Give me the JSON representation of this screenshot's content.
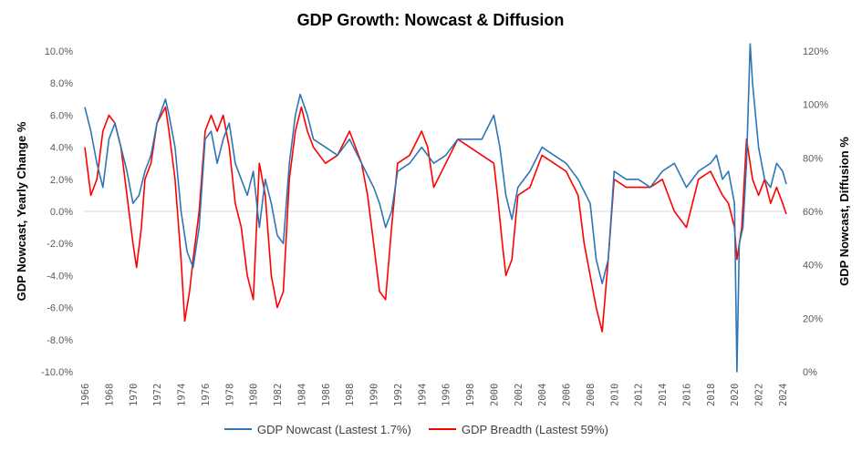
{
  "chart_data": {
    "type": "line",
    "title": "GDP Growth: Nowcast & Diffusion",
    "ylabel": "GDP Nowcast, Yearly Change %",
    "y2label": "GDP Nowcast, Diffusion %",
    "ylim": [
      -10,
      10
    ],
    "y2lim": [
      0,
      120
    ],
    "xlim": [
      1966,
      2024.5
    ],
    "yticks": [
      "-10.0%",
      "-8.0%",
      "-6.0%",
      "-4.0%",
      "-2.0%",
      "0.0%",
      "2.0%",
      "4.0%",
      "6.0%",
      "8.0%",
      "10.0%"
    ],
    "y2ticks": [
      "0%",
      "20%",
      "40%",
      "60%",
      "80%",
      "100%",
      "120%"
    ],
    "xticks": [
      "1966",
      "1968",
      "1970",
      "1972",
      "1974",
      "1976",
      "1978",
      "1980",
      "1982",
      "1984",
      "1986",
      "1988",
      "1990",
      "1992",
      "1994",
      "1996",
      "1998",
      "2000",
      "2002",
      "2004",
      "2006",
      "2008",
      "2010",
      "2012",
      "2014",
      "2016",
      "2018",
      "2020",
      "2022",
      "2024"
    ],
    "legend_position": "bottom",
    "series": [
      {
        "name": "GDP Nowcast (Lastest 1.7%)",
        "axis": "left",
        "color": "#2E75B6",
        "points": [
          [
            1966,
            6.5
          ],
          [
            1966.5,
            5
          ],
          [
            1967,
            3
          ],
          [
            1967.5,
            1.5
          ],
          [
            1968,
            4.5
          ],
          [
            1968.5,
            5.5
          ],
          [
            1969,
            4
          ],
          [
            1969.5,
            2.5
          ],
          [
            1970,
            0.5
          ],
          [
            1970.5,
            1
          ],
          [
            1971,
            2.5
          ],
          [
            1971.5,
            3.5
          ],
          [
            1972,
            5.5
          ],
          [
            1972.7,
            7
          ],
          [
            1973,
            6
          ],
          [
            1973.5,
            4
          ],
          [
            1974,
            0
          ],
          [
            1974.5,
            -2.5
          ],
          [
            1975,
            -3.5
          ],
          [
            1975.5,
            -1
          ],
          [
            1976,
            4.5
          ],
          [
            1976.5,
            5
          ],
          [
            1977,
            3
          ],
          [
            1977.5,
            4.5
          ],
          [
            1978,
            5.5
          ],
          [
            1978.5,
            3
          ],
          [
            1979,
            2
          ],
          [
            1979.5,
            1
          ],
          [
            1980,
            2.5
          ],
          [
            1980.5,
            -1
          ],
          [
            1981,
            2
          ],
          [
            1981.5,
            0.5
          ],
          [
            1982,
            -1.5
          ],
          [
            1982.5,
            -2
          ],
          [
            1983,
            3
          ],
          [
            1983.5,
            6
          ],
          [
            1983.9,
            7.3
          ],
          [
            1984.5,
            6
          ],
          [
            1985,
            4.5
          ],
          [
            1986,
            4
          ],
          [
            1987,
            3.5
          ],
          [
            1988,
            4.5
          ],
          [
            1989,
            3
          ],
          [
            1990,
            1.5
          ],
          [
            1990.5,
            0.5
          ],
          [
            1991,
            -1
          ],
          [
            1991.5,
            0
          ],
          [
            1992,
            2.5
          ],
          [
            1993,
            3
          ],
          [
            1994,
            4
          ],
          [
            1995,
            3
          ],
          [
            1996,
            3.5
          ],
          [
            1997,
            4.5
          ],
          [
            1998,
            4.5
          ],
          [
            1999,
            4.5
          ],
          [
            2000,
            6
          ],
          [
            2000.5,
            4
          ],
          [
            2001,
            1
          ],
          [
            2001.5,
            -0.5
          ],
          [
            2002,
            1.5
          ],
          [
            2003,
            2.5
          ],
          [
            2004,
            4
          ],
          [
            2005,
            3.5
          ],
          [
            2006,
            3
          ],
          [
            2007,
            2
          ],
          [
            2008,
            0.5
          ],
          [
            2008.5,
            -3
          ],
          [
            2009,
            -4.5
          ],
          [
            2009.5,
            -3
          ],
          [
            2010,
            2.5
          ],
          [
            2011,
            2
          ],
          [
            2012,
            2
          ],
          [
            2013,
            1.5
          ],
          [
            2014,
            2.5
          ],
          [
            2015,
            3
          ],
          [
            2016,
            1.5
          ],
          [
            2017,
            2.5
          ],
          [
            2018,
            3
          ],
          [
            2018.5,
            3.5
          ],
          [
            2019,
            2
          ],
          [
            2019.5,
            2.5
          ],
          [
            2020,
            0.5
          ],
          [
            2020.2,
            -10
          ],
          [
            2020.4,
            -2
          ],
          [
            2020.7,
            -1
          ],
          [
            2021,
            3
          ],
          [
            2021.3,
            11
          ],
          [
            2021.5,
            8
          ],
          [
            2022,
            4
          ],
          [
            2022.5,
            2
          ],
          [
            2023,
            1.5
          ],
          [
            2023.5,
            3
          ],
          [
            2024,
            2.5
          ],
          [
            2024.3,
            1.7
          ]
        ]
      },
      {
        "name": "GDP Breadth (Lastest 59%)",
        "axis": "right",
        "color": "#FF0000",
        "points": [
          [
            1966,
            84
          ],
          [
            1966.5,
            66
          ],
          [
            1967,
            72
          ],
          [
            1967.5,
            90
          ],
          [
            1968,
            96
          ],
          [
            1968.5,
            93
          ],
          [
            1969,
            84
          ],
          [
            1969.5,
            66
          ],
          [
            1970,
            48
          ],
          [
            1970.3,
            39
          ],
          [
            1970.7,
            54
          ],
          [
            1971,
            72
          ],
          [
            1971.5,
            78
          ],
          [
            1972,
            93
          ],
          [
            1972.7,
            99
          ],
          [
            1973,
            90
          ],
          [
            1973.5,
            72
          ],
          [
            1974,
            42
          ],
          [
            1974.3,
            19
          ],
          [
            1974.7,
            30
          ],
          [
            1975,
            42
          ],
          [
            1975.5,
            60
          ],
          [
            1976,
            90
          ],
          [
            1976.5,
            96
          ],
          [
            1977,
            90
          ],
          [
            1977.5,
            96
          ],
          [
            1978,
            84
          ],
          [
            1978.5,
            63
          ],
          [
            1979,
            54
          ],
          [
            1979.5,
            36
          ],
          [
            1980,
            27
          ],
          [
            1980.5,
            78
          ],
          [
            1981,
            66
          ],
          [
            1981.5,
            36
          ],
          [
            1982,
            24
          ],
          [
            1982.5,
            30
          ],
          [
            1983,
            72
          ],
          [
            1983.5,
            90
          ],
          [
            1984,
            99
          ],
          [
            1984.5,
            90
          ],
          [
            1985,
            84
          ],
          [
            1986,
            78
          ],
          [
            1987,
            81
          ],
          [
            1988,
            90
          ],
          [
            1989,
            78
          ],
          [
            1989.5,
            66
          ],
          [
            1990,
            48
          ],
          [
            1990.5,
            30
          ],
          [
            1991,
            27
          ],
          [
            1991.5,
            54
          ],
          [
            1992,
            78
          ],
          [
            1993,
            81
          ],
          [
            1994,
            90
          ],
          [
            1994.5,
            84
          ],
          [
            1995,
            69
          ],
          [
            1996,
            78
          ],
          [
            1997,
            87
          ],
          [
            1998,
            84
          ],
          [
            1999,
            81
          ],
          [
            2000,
            78
          ],
          [
            2000.3,
            66
          ],
          [
            2000.7,
            48
          ],
          [
            2001,
            36
          ],
          [
            2001.5,
            42
          ],
          [
            2002,
            66
          ],
          [
            2003,
            69
          ],
          [
            2004,
            81
          ],
          [
            2005,
            78
          ],
          [
            2006,
            75
          ],
          [
            2007,
            66
          ],
          [
            2007.5,
            48
          ],
          [
            2008,
            36
          ],
          [
            2008.5,
            24
          ],
          [
            2009,
            15
          ],
          [
            2009.5,
            42
          ],
          [
            2010,
            72
          ],
          [
            2011,
            69
          ],
          [
            2012,
            69
          ],
          [
            2013,
            69
          ],
          [
            2014,
            72
          ],
          [
            2015,
            60
          ],
          [
            2016,
            54
          ],
          [
            2016.5,
            63
          ],
          [
            2017,
            72
          ],
          [
            2018,
            75
          ],
          [
            2019,
            66
          ],
          [
            2019.5,
            63
          ],
          [
            2020,
            54
          ],
          [
            2020.2,
            42
          ],
          [
            2020.6,
            54
          ],
          [
            2021,
            87
          ],
          [
            2021.5,
            72
          ],
          [
            2022,
            66
          ],
          [
            2022.5,
            72
          ],
          [
            2023,
            63
          ],
          [
            2023.5,
            69
          ],
          [
            2024,
            63
          ],
          [
            2024.3,
            59
          ]
        ]
      }
    ]
  }
}
